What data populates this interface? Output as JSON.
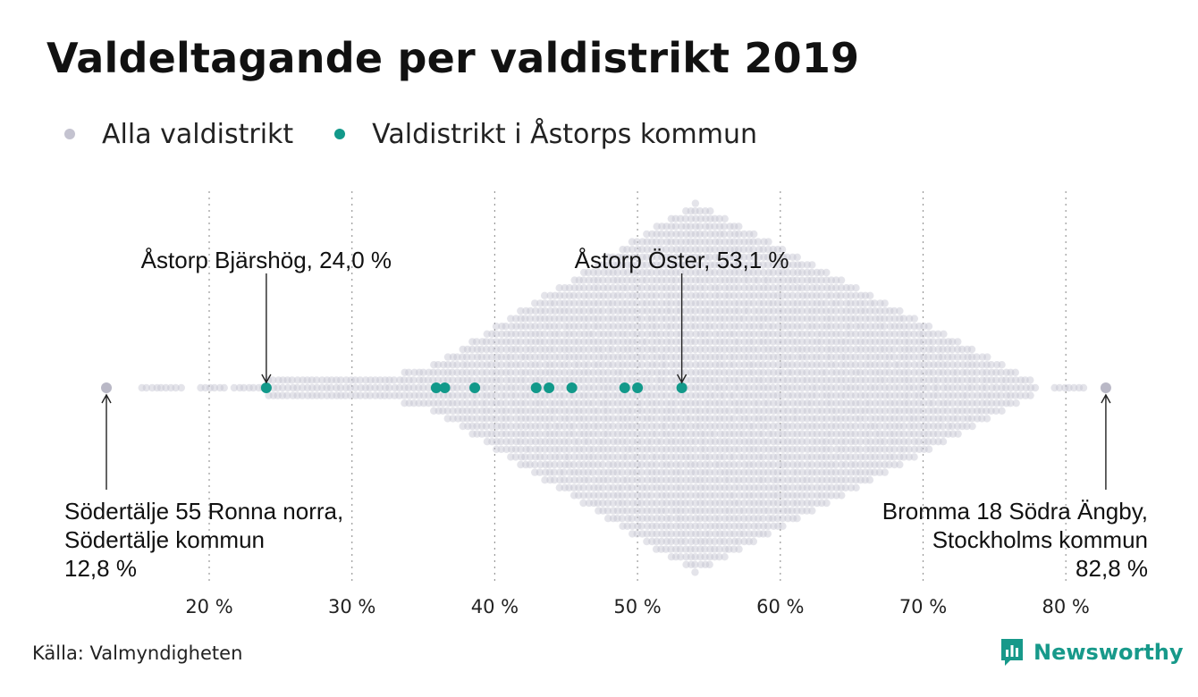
{
  "title": "Valdeltagande per valdistrikt 2019",
  "legend": [
    {
      "label": "Alla valdistrikt",
      "color": "#c4c3d0"
    },
    {
      "label": "Valdistrikt i Åstorps kommun",
      "color": "#12998a"
    }
  ],
  "source": "Källa: Valmyndigheten",
  "brand": {
    "name": "Newsworthy",
    "icon": "newsworthy-logo-icon",
    "color": "#17998a"
  },
  "chart_data": {
    "type": "beeswarm",
    "xlabel": "",
    "ylabel": "",
    "xlim": [
      12.8,
      82.8
    ],
    "x_ticks": [
      20,
      30,
      40,
      50,
      60,
      70,
      80
    ],
    "x_tick_labels": [
      "20 %",
      "30 %",
      "40 %",
      "50 %",
      "60 %",
      "70 %",
      "80 %"
    ],
    "grid": "vertical dotted",
    "series": [
      {
        "name": "Alla valdistrikt",
        "color": "#c4c3d0",
        "distribution": "all voting districts in Sweden, turnout from 12.8 % to 82.8 %, mode near 54 %",
        "min": 12.8,
        "max": 82.8,
        "mode": 54.0
      },
      {
        "name": "Valdistrikt i Åstorps kommun",
        "color": "#12998a",
        "values": [
          24.0,
          35.9,
          36.5,
          38.6,
          42.9,
          43.8,
          45.4,
          49.1,
          50.0,
          53.1
        ]
      }
    ],
    "annotations": [
      {
        "text": "Åstorp  Bjärshög, 24,0 %",
        "x": 24.0,
        "position": "above"
      },
      {
        "text": "Åstorp  Öster, 53,1 %",
        "x": 53.1,
        "position": "above"
      },
      {
        "lines": [
          "Södertälje 55 Ronna norra,",
          "Södertälje kommun",
          "12,8 %"
        ],
        "x": 12.8,
        "position": "below-left"
      },
      {
        "lines": [
          "Bromma 18 Södra Ängby,",
          "Stockholms kommun",
          "82,8 %"
        ],
        "x": 82.8,
        "position": "below-right"
      }
    ]
  }
}
